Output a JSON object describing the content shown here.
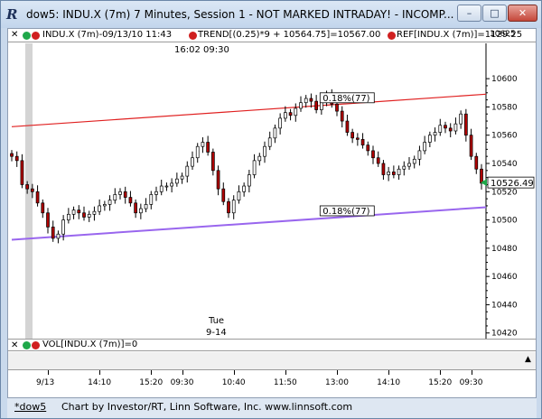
{
  "window": {
    "title": "dow5: INDU.X (7m) 7 Minutes, Session 1 - NOT MARKED INTRADAY! - INCOMP...",
    "app_icon_letter": "R",
    "minimize_glyph": "–",
    "maximize_glyph": "□",
    "close_glyph": "✕"
  },
  "header": {
    "close_glyph": "✕",
    "indu_label": "INDU.X (7m)-09/13/10 11:43",
    "trend_label": "TREND[(0.25)*9 + 10564.75]=10567.00",
    "ref_label": "REF[INDU.X (7m)]=1129.25",
    "top_price": "10625",
    "dot_green": "#1fa84a",
    "dot_red": "#d02020"
  },
  "chart": {
    "cursor_time": "16:02  09:30",
    "session_day": "Tue",
    "session_date": "9-14",
    "upper_channel_label": "0.18%(77)",
    "lower_channel_label": "0.18%(77)",
    "last_price": "10526.49",
    "upper_line_color": "#e02020",
    "lower_line_color": "#9966ee",
    "up_color": "#ffffff",
    "down_color": "#b00000",
    "last_price_marker_color": "#1fa84a"
  },
  "chart_data": {
    "type": "candlestick",
    "title": "",
    "xlabel": "",
    "ylabel": "",
    "y_ticks": [
      10600,
      10580,
      10560,
      10540,
      10520,
      10500,
      10480,
      10460,
      10440,
      10420
    ],
    "ylim": [
      10416,
      10625
    ],
    "x_ticks": [
      "9/13",
      "14:10",
      "15:20",
      "09:30",
      "10:40",
      "11:50",
      "13:00",
      "14:10",
      "15:20",
      "09:30"
    ],
    "closes": [
      10545,
      10542,
      10525,
      10522,
      10520,
      10512,
      10505,
      10495,
      10487,
      10490,
      10500,
      10504,
      10507,
      10505,
      10502,
      10504,
      10506,
      10510,
      10511,
      10514,
      10518,
      10520,
      10516,
      10512,
      10505,
      10508,
      10511,
      10518,
      10520,
      10524,
      10524,
      10526,
      10529,
      10531,
      10538,
      10544,
      10552,
      10555,
      10548,
      10535,
      10522,
      10513,
      10505,
      10514,
      10520,
      10524,
      10532,
      10542,
      10545,
      10552,
      10558,
      10565,
      10572,
      10576,
      10574,
      10579,
      10583,
      10586,
      10584,
      10578,
      10585,
      10588,
      10582,
      10577,
      10570,
      10562,
      10558,
      10557,
      10553,
      10549,
      10544,
      10540,
      10532,
      10534,
      10532,
      10536,
      10538,
      10540,
      10543,
      10549,
      10555,
      10560,
      10562,
      10567,
      10565,
      10563,
      10568,
      10575,
      10560,
      10545,
      10536,
      10526
    ],
    "upper_channel": [
      [
        0,
        10566
      ],
      [
        91,
        10589
      ]
    ],
    "lower_channel": [
      [
        0,
        10486
      ],
      [
        91,
        10509
      ]
    ],
    "last_price": 10526.49
  },
  "volume": {
    "label": "VOL[INDU.X (7m)]=0"
  },
  "axis": {
    "scroll_glyph": "▲"
  },
  "footer": {
    "tab": "*dow5",
    "credit": "Chart by Investor/RT, Linn Software, Inc. www.linnsoft.com"
  }
}
